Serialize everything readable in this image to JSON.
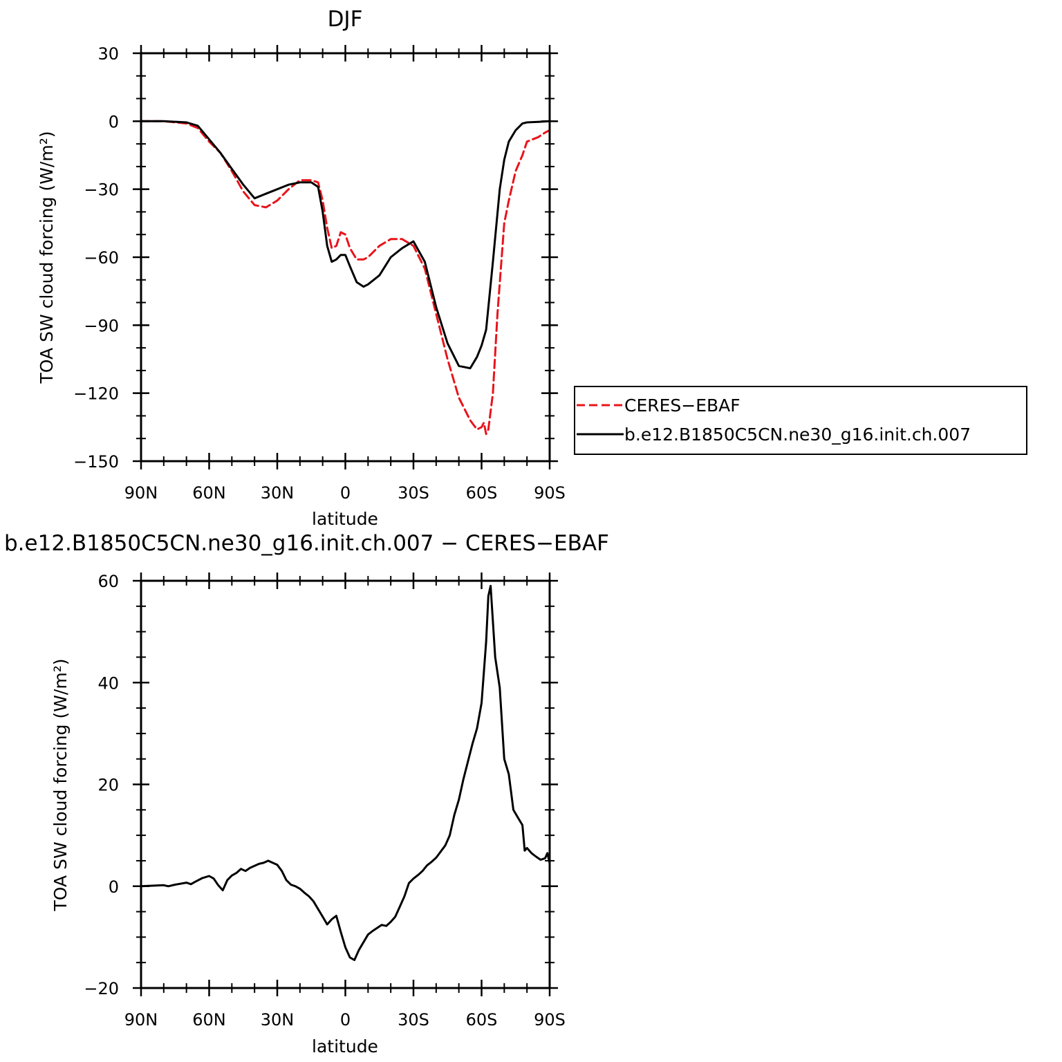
{
  "colors": {
    "obs": "#e8141b",
    "model": "#000000"
  },
  "chart_data": [
    {
      "type": "line",
      "title": "DJF",
      "xlabel": "latitude",
      "ylabel": "TOA SW cloud forcing (W/m²)",
      "xlim": [
        -90,
        90
      ],
      "ylim": [
        -150,
        30
      ],
      "x_ticks": [
        {
          "value": -90,
          "label": "90N"
        },
        {
          "value": -60,
          "label": "60N"
        },
        {
          "value": -30,
          "label": "30N"
        },
        {
          "value": 0,
          "label": "0"
        },
        {
          "value": 30,
          "label": "30S"
        },
        {
          "value": 60,
          "label": "60S"
        },
        {
          "value": 90,
          "label": "90S"
        }
      ],
      "y_ticks": [
        {
          "value": 30,
          "label": "30"
        },
        {
          "value": 0,
          "label": "0"
        },
        {
          "value": -30,
          "label": "−30"
        },
        {
          "value": -60,
          "label": "−60"
        },
        {
          "value": -90,
          "label": "−90"
        },
        {
          "value": -120,
          "label": "−120"
        },
        {
          "value": -150,
          "label": "−150"
        }
      ],
      "legend": {
        "placement": "right",
        "entries": [
          "CERES−EBAF",
          "b.e12.B1850C5CN.ne30_g16.init.ch.007"
        ]
      },
      "series": [
        {
          "name": "CERES−EBAF",
          "style": "dashed",
          "color": "#e8141b",
          "x": [
            -90,
            -80,
            -70,
            -65,
            -60,
            -55,
            -50,
            -45,
            -40,
            -35,
            -30,
            -25,
            -20,
            -15,
            -12,
            -10,
            -8,
            -6,
            -4,
            -2,
            0,
            2,
            5,
            8,
            10,
            15,
            20,
            25,
            30,
            35,
            40,
            45,
            50,
            55,
            58,
            60,
            61,
            62,
            63,
            65,
            67,
            70,
            72,
            75,
            78,
            80,
            85,
            88,
            90
          ],
          "y": [
            0,
            0,
            -1,
            -3,
            -9,
            -14,
            -22,
            -31,
            -37,
            -38,
            -35,
            -30,
            -26,
            -26,
            -27,
            -35,
            -47,
            -56,
            -55,
            -49,
            -50,
            -56,
            -61,
            -61,
            -60,
            -55,
            -52,
            -52,
            -55,
            -65,
            -85,
            -105,
            -122,
            -132,
            -136,
            -135,
            -133,
            -138,
            -136,
            -120,
            -85,
            -45,
            -35,
            -22,
            -15,
            -9,
            -7,
            -5,
            -4
          ]
        },
        {
          "name": "b.e12.B1850C5CN.ne30_g16.init.ch.007",
          "style": "solid",
          "color": "#000000",
          "x": [
            -90,
            -80,
            -70,
            -65,
            -60,
            -55,
            -50,
            -45,
            -40,
            -35,
            -30,
            -25,
            -20,
            -15,
            -12,
            -10,
            -8,
            -6,
            -4,
            -2,
            0,
            2,
            5,
            8,
            10,
            15,
            20,
            25,
            30,
            35,
            40,
            45,
            50,
            55,
            58,
            60,
            62,
            65,
            68,
            70,
            72,
            75,
            78,
            80,
            85,
            90
          ],
          "y": [
            0,
            0,
            -0.5,
            -2,
            -8,
            -14,
            -21,
            -28,
            -34,
            -32,
            -30,
            -28,
            -27,
            -27,
            -29,
            -40,
            -55,
            -62,
            -61,
            -59,
            -59,
            -64,
            -71,
            -73,
            -72,
            -68,
            -60,
            -56,
            -53,
            -62,
            -82,
            -98,
            -108,
            -109,
            -104,
            -99,
            -92,
            -62,
            -30,
            -17,
            -9,
            -4,
            -1,
            -0.5,
            -0.3,
            0
          ]
        }
      ]
    },
    {
      "type": "line",
      "title": "b.e12.B1850C5CN.ne30_g16.init.ch.007 − CERES−EBAF",
      "xlabel": "latitude",
      "ylabel": "TOA SW cloud forcing (W/m²)",
      "xlim": [
        -90,
        90
      ],
      "ylim": [
        -20,
        60
      ],
      "x_ticks": [
        {
          "value": -90,
          "label": "90N"
        },
        {
          "value": -60,
          "label": "60N"
        },
        {
          "value": -30,
          "label": "30N"
        },
        {
          "value": 0,
          "label": "0"
        },
        {
          "value": 30,
          "label": "30S"
        },
        {
          "value": 60,
          "label": "60S"
        },
        {
          "value": 90,
          "label": "90S"
        }
      ],
      "y_ticks": [
        {
          "value": 60,
          "label": "60"
        },
        {
          "value": 40,
          "label": "40"
        },
        {
          "value": 20,
          "label": "20"
        },
        {
          "value": 0,
          "label": "0"
        },
        {
          "value": -20,
          "label": "−20"
        }
      ],
      "series": [
        {
          "style": "solid",
          "color": "#000000",
          "x": [
            -90,
            -80,
            -78,
            -75,
            -70,
            -68,
            -66,
            -63,
            -60,
            -58,
            -56,
            -54,
            -52,
            -50,
            -48,
            -46,
            -44,
            -42,
            -40,
            -38,
            -36,
            -34,
            -32,
            -30,
            -28,
            -26,
            -24,
            -22,
            -20,
            -18,
            -16,
            -14,
            -12,
            -10,
            -8,
            -6,
            -4,
            -2,
            0,
            2,
            4,
            6,
            8,
            10,
            12,
            14,
            16,
            18,
            20,
            22,
            24,
            26,
            28,
            30,
            32,
            34,
            36,
            38,
            40,
            42,
            44,
            46,
            48,
            50,
            52,
            54,
            56,
            58,
            60,
            62,
            63,
            64,
            65,
            66,
            68,
            70,
            72,
            74,
            76,
            78,
            79,
            80,
            82,
            84,
            86,
            88,
            89,
            90
          ],
          "y": [
            0,
            0.2,
            0,
            0.3,
            0.7,
            0.4,
            0.9,
            1.6,
            2,
            1.5,
            0.2,
            -0.8,
            1.2,
            2.1,
            2.6,
            3.4,
            3,
            3.6,
            4,
            4.4,
            4.6,
            5,
            4.6,
            4.2,
            3,
            1.2,
            0.3,
            0,
            -0.5,
            -1.3,
            -2,
            -3,
            -4.5,
            -6,
            -7.5,
            -6.5,
            -5.8,
            -9,
            -12,
            -14,
            -14.5,
            -12.5,
            -11,
            -9.5,
            -8.8,
            -8.2,
            -7.6,
            -7.8,
            -7,
            -6,
            -4,
            -2,
            0.6,
            1.5,
            2.2,
            3,
            4.1,
            4.8,
            5.6,
            6.8,
            8,
            10,
            14,
            17,
            21,
            24.5,
            28,
            31,
            36,
            48,
            57,
            59,
            52,
            45,
            39,
            25,
            22,
            15,
            13.5,
            12,
            7,
            7.5,
            6.5,
            5.8,
            5.2,
            5.5,
            6.5,
            4.5
          ]
        }
      ]
    }
  ]
}
